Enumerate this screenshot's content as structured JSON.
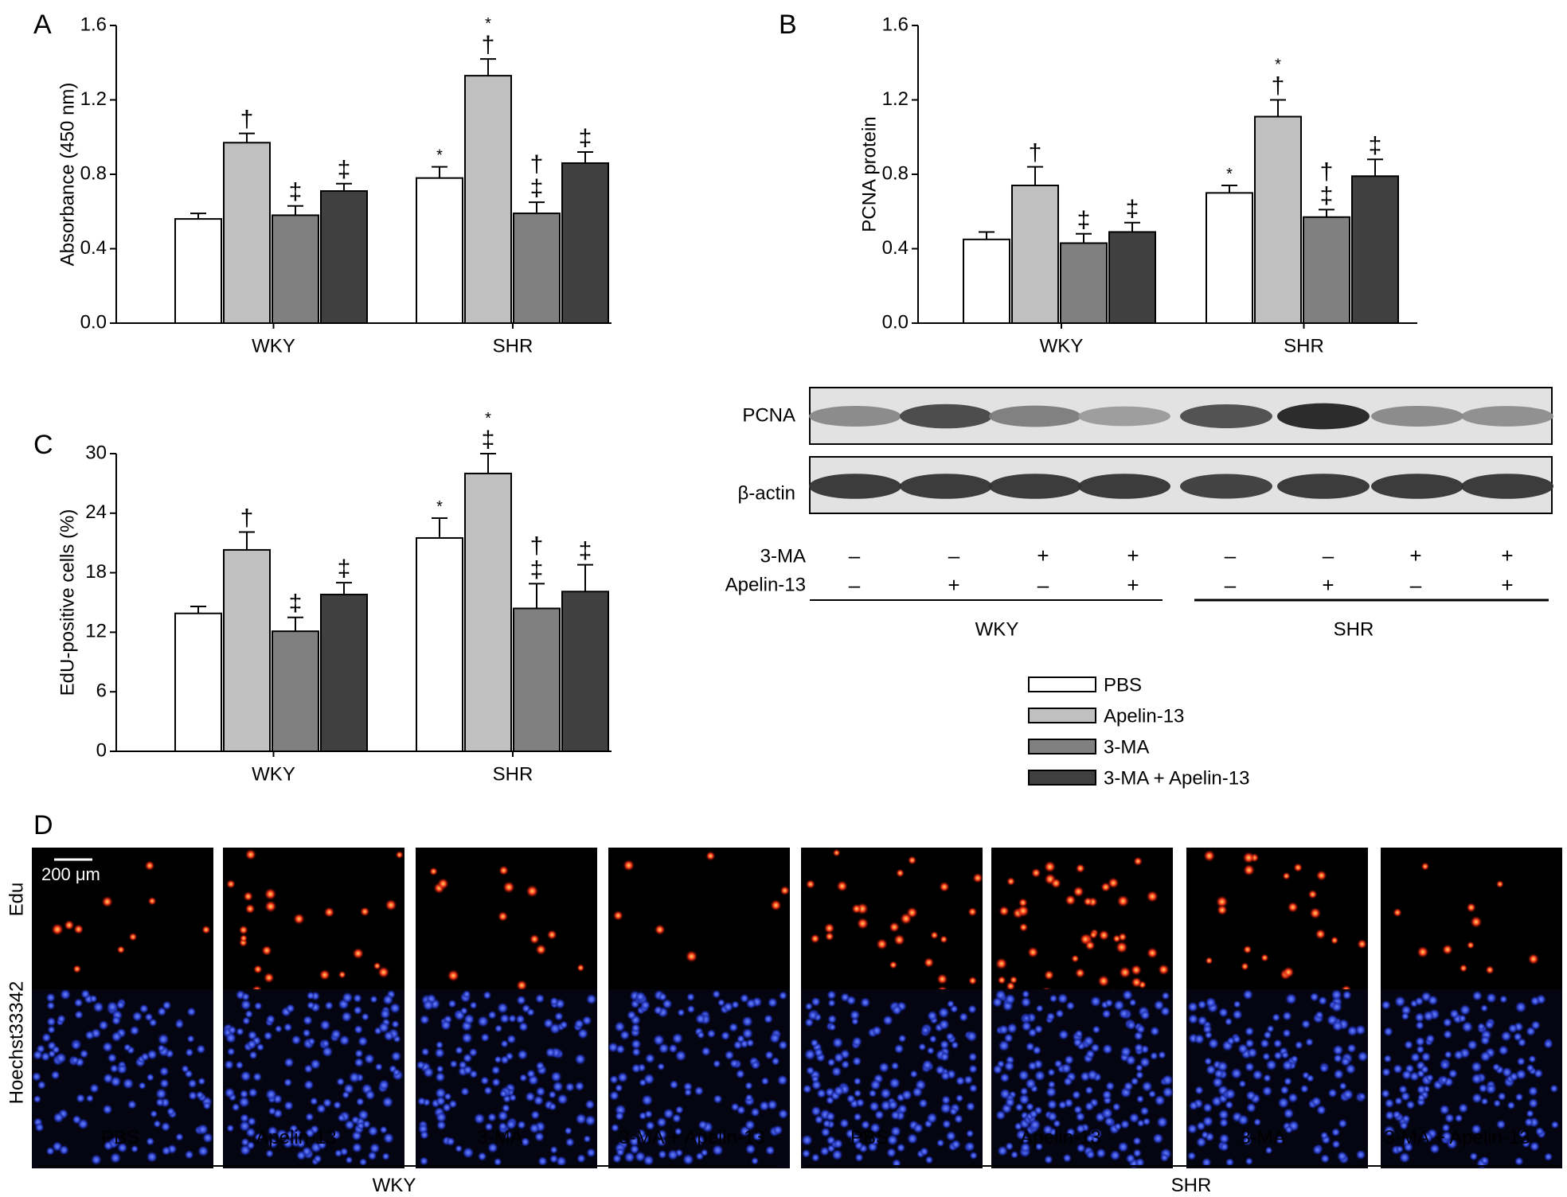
{
  "panel_labels": {
    "a": "A",
    "b": "B",
    "c": "C",
    "d": "D"
  },
  "colors": {
    "PBS": "#ffffff",
    "Apelin-13": "#c0c0c0",
    "3-MA": "#808080",
    "3-MA + Apelin-13": "#404040"
  },
  "legend": [
    {
      "label": "PBS",
      "color": "#ffffff"
    },
    {
      "label": "Apelin-13",
      "color": "#c0c0c0"
    },
    {
      "label": "3-MA",
      "color": "#808080"
    },
    {
      "label": "3-MA + Apelin-13",
      "color": "#404040"
    }
  ],
  "chart_data": [
    {
      "id": "A",
      "type": "bar",
      "ylabel": "Absorbance (450 nm)",
      "ylim": [
        0,
        1.6
      ],
      "yticks": [
        "0.0",
        "0.4",
        "0.8",
        "1.2",
        "1.6"
      ],
      "categories": [
        "WKY",
        "SHR"
      ],
      "series": [
        {
          "name": "PBS",
          "values": [
            0.56,
            0.78
          ],
          "errors": [
            0.03,
            0.06
          ],
          "marks": [
            "",
            "*"
          ]
        },
        {
          "name": "Apelin-13",
          "values": [
            0.97,
            1.33
          ],
          "errors": [
            0.05,
            0.09
          ],
          "marks": [
            "†",
            "*\n†"
          ]
        },
        {
          "name": "3-MA",
          "values": [
            0.58,
            0.59
          ],
          "errors": [
            0.05,
            0.06
          ],
          "marks": [
            "‡",
            "†\n‡"
          ]
        },
        {
          "name": "3-MA + Apelin-13",
          "values": [
            0.71,
            0.86
          ],
          "errors": [
            0.04,
            0.06
          ],
          "marks": [
            "‡",
            "‡"
          ]
        }
      ]
    },
    {
      "id": "B",
      "type": "bar",
      "ylabel": "PCNA protein",
      "ylim": [
        0,
        1.6
      ],
      "yticks": [
        "0.0",
        "0.4",
        "0.8",
        "1.2",
        "1.6"
      ],
      "categories": [
        "WKY",
        "SHR"
      ],
      "series": [
        {
          "name": "PBS",
          "values": [
            0.45,
            0.7
          ],
          "errors": [
            0.04,
            0.04
          ],
          "marks": [
            "",
            "*"
          ]
        },
        {
          "name": "Apelin-13",
          "values": [
            0.74,
            1.11
          ],
          "errors": [
            0.1,
            0.09
          ],
          "marks": [
            "†",
            "*\n†"
          ]
        },
        {
          "name": "3-MA",
          "values": [
            0.43,
            0.57
          ],
          "errors": [
            0.05,
            0.04
          ],
          "marks": [
            "‡",
            "†\n‡"
          ]
        },
        {
          "name": "3-MA + Apelin-13",
          "values": [
            0.49,
            0.79
          ],
          "errors": [
            0.05,
            0.09
          ],
          "marks": [
            "‡",
            "‡"
          ]
        }
      ]
    },
    {
      "id": "C",
      "type": "bar",
      "ylabel": "EdU-positive cells (%)",
      "ylim": [
        0,
        30
      ],
      "yticks": [
        "0",
        "6",
        "12",
        "18",
        "24",
        "30"
      ],
      "categories": [
        "WKY",
        "SHR"
      ],
      "series": [
        {
          "name": "PBS",
          "values": [
            13.9,
            21.5
          ],
          "errors": [
            0.7,
            2.0
          ],
          "marks": [
            "",
            "*"
          ]
        },
        {
          "name": "Apelin-13",
          "values": [
            20.3,
            28.0
          ],
          "errors": [
            1.8,
            2.0
          ],
          "marks": [
            "†",
            "*\n‡"
          ]
        },
        {
          "name": "3-MA",
          "values": [
            12.1,
            14.4
          ],
          "errors": [
            1.4,
            2.5
          ],
          "marks": [
            "‡",
            "†\n‡"
          ]
        },
        {
          "name": "3-MA + Apelin-13",
          "values": [
            15.8,
            16.1
          ],
          "errors": [
            1.2,
            2.7
          ],
          "marks": [
            "‡",
            "‡"
          ]
        }
      ]
    }
  ],
  "blot": {
    "rows": [
      {
        "label": "PCNA",
        "intensity": [
          0.5,
          0.78,
          0.55,
          0.42,
          0.75,
          0.92,
          0.5,
          0.48
        ]
      },
      {
        "label": "β-actin",
        "intensity": [
          0.85,
          0.85,
          0.85,
          0.85,
          0.82,
          0.85,
          0.85,
          0.85
        ]
      }
    ],
    "conditions": [
      {
        "label": "3-MA",
        "values": [
          "–",
          "–",
          "+",
          "+",
          "–",
          "–",
          "+",
          "+"
        ]
      },
      {
        "label": "Apelin-13",
        "values": [
          "–",
          "+",
          "–",
          "+",
          "–",
          "+",
          "–",
          "+"
        ]
      }
    ],
    "groups": [
      "WKY",
      "SHR"
    ]
  },
  "micro": {
    "rows": [
      "Edu",
      "Hoechst33342"
    ],
    "columns": [
      "PBS",
      "Apelin-13",
      "3-MA",
      "3-MA + Apelin-13",
      "PBS",
      "Apelin-13",
      "3-MA",
      "3-MA + Apelin-13"
    ],
    "groups": [
      "WKY",
      "SHR"
    ],
    "scale_bar": "200 μm",
    "edu_counts": [
      12,
      26,
      18,
      10,
      36,
      60,
      30,
      18
    ],
    "hoechst_counts": [
      130,
      160,
      150,
      140,
      170,
      190,
      150,
      155
    ]
  }
}
